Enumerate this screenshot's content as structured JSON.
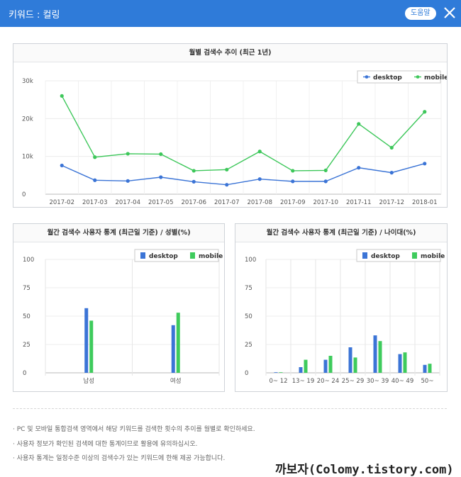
{
  "header": {
    "title": "키워드 : 컬링",
    "help_label": "도움말",
    "close_icon": "close-icon"
  },
  "colors": {
    "header_bg": "#2f7bd9",
    "desktop_line": "#3b74d6",
    "mobile_line": "#3dc75a",
    "desktop_bar": "#3b74d6",
    "mobile_bar": "#3ecb5c"
  },
  "chart_data": [
    {
      "type": "line",
      "title": "월별 검색수 추이 (최근 1년)",
      "categories": [
        "2017-02",
        "2017-03",
        "2017-04",
        "2017-05",
        "2017-06",
        "2017-07",
        "2017-08",
        "2017-09",
        "2017-10",
        "2017-11",
        "2017-12",
        "2018-01"
      ],
      "series": [
        {
          "name": "desktop",
          "values": [
            7600,
            3700,
            3500,
            4500,
            3300,
            2500,
            4000,
            3400,
            3400,
            7000,
            5700,
            8100
          ]
        },
        {
          "name": "mobile",
          "values": [
            26000,
            9800,
            10700,
            10600,
            6200,
            6500,
            11300,
            6200,
            6300,
            18600,
            12300,
            21800
          ]
        }
      ],
      "yticks": [
        "0",
        "10k",
        "20k",
        "30k"
      ],
      "ylim": [
        0,
        30000
      ],
      "legend": "top-right",
      "grid": true
    },
    {
      "type": "bar",
      "title": "월간 검색수 사용자 통계 (최근일 기준) / 성별(%)",
      "categories": [
        "남성",
        "여성"
      ],
      "series": [
        {
          "name": "desktop",
          "values": [
            57,
            42
          ]
        },
        {
          "name": "mobile",
          "values": [
            46,
            53
          ]
        }
      ],
      "yticks": [
        "0",
        "25",
        "50",
        "75",
        "100"
      ],
      "ylim": [
        0,
        100
      ],
      "legend": "top-right",
      "grid": true
    },
    {
      "type": "bar",
      "title": "월간 검색수 사용자 통계 (최근일 기준) / 나이대(%)",
      "categories": [
        "0~ 12",
        "13~ 19",
        "20~ 24",
        "25~ 29",
        "30~ 39",
        "40~ 49",
        "50~"
      ],
      "series": [
        {
          "name": "desktop",
          "values": [
            0.5,
            5,
            11.5,
            22.5,
            33,
            16.5,
            7
          ]
        },
        {
          "name": "mobile",
          "values": [
            0.5,
            11.5,
            15,
            13.5,
            28,
            18,
            8
          ]
        }
      ],
      "yticks": [
        "0",
        "25",
        "50",
        "75",
        "100"
      ],
      "ylim": [
        0,
        100
      ],
      "legend": "top-right",
      "grid": true
    }
  ],
  "notes": [
    "PC 및 모바일 통합검색 영역에서 해당 키워드를 검색한 횟수의 추이를 월별로 확인하세요.",
    "사용자 정보가 확인된 검색에 대한 통계이므로 활용에 유의하십시오.",
    "사용자 통계는 일정수준 이상의 검색수가 있는 키워드에 한해 제공 가능합니다."
  ],
  "watermark": "까보자(Colomy.tistory.com)"
}
